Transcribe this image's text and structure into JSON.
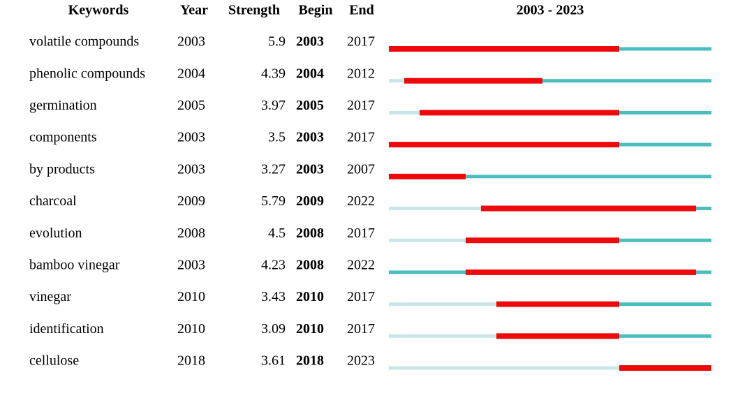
{
  "chart_data": {
    "type": "burst",
    "columns": [
      "Keywords",
      "Year",
      "Strength",
      "Begin",
      "End"
    ],
    "timeline_title": "2003 - 2023",
    "xlim": [
      2003,
      2023
    ],
    "colors": {
      "before": "#c8e6e8",
      "active": "#4bbdbf",
      "burst": "#ee0a0a"
    },
    "rows": [
      {
        "keyword": "volatile compounds",
        "year": 2003,
        "strength": 5.9,
        "begin": 2003,
        "end": 2017
      },
      {
        "keyword": "phenolic compounds",
        "year": 2004,
        "strength": 4.39,
        "begin": 2004,
        "end": 2012
      },
      {
        "keyword": "germination",
        "year": 2005,
        "strength": 3.97,
        "begin": 2005,
        "end": 2017
      },
      {
        "keyword": "components",
        "year": 2003,
        "strength": 3.5,
        "begin": 2003,
        "end": 2017
      },
      {
        "keyword": "by products",
        "year": 2003,
        "strength": 3.27,
        "begin": 2003,
        "end": 2007
      },
      {
        "keyword": "charcoal",
        "year": 2009,
        "strength": 5.79,
        "begin": 2009,
        "end": 2022
      },
      {
        "keyword": "evolution",
        "year": 2008,
        "strength": 4.5,
        "begin": 2008,
        "end": 2017
      },
      {
        "keyword": "bamboo vinegar",
        "year": 2003,
        "strength": 4.23,
        "begin": 2008,
        "end": 2022
      },
      {
        "keyword": "vinegar",
        "year": 2010,
        "strength": 3.43,
        "begin": 2010,
        "end": 2017
      },
      {
        "keyword": "identification",
        "year": 2010,
        "strength": 3.09,
        "begin": 2010,
        "end": 2017
      },
      {
        "keyword": "cellulose",
        "year": 2018,
        "strength": 3.61,
        "begin": 2018,
        "end": 2023
      }
    ]
  }
}
